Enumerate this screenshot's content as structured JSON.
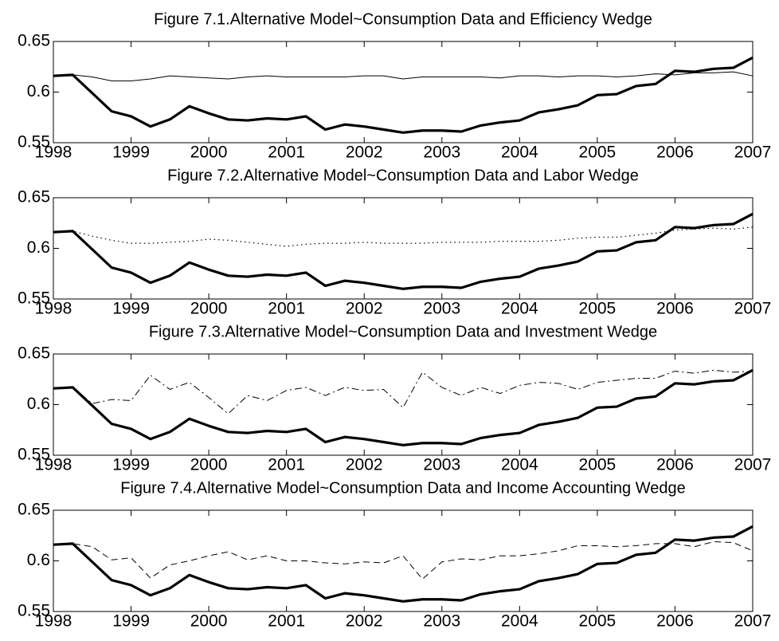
{
  "chart_data": [
    {
      "type": "line",
      "title": "Figure 7.1.Alternative Model~Consumption Data and Efficiency Wedge",
      "x": [
        1998,
        1998.25,
        1998.5,
        1998.75,
        1999,
        1999.25,
        1999.5,
        1999.75,
        2000,
        2000.25,
        2000.5,
        2000.75,
        2001,
        2001.25,
        2001.5,
        2001.75,
        2002,
        2002.25,
        2002.5,
        2002.75,
        2003,
        2003.25,
        2003.5,
        2003.75,
        2004,
        2004.25,
        2004.5,
        2004.75,
        2005,
        2005.25,
        2005.5,
        2005.75,
        2006,
        2006.25,
        2006.5,
        2006.75,
        2007
      ],
      "series": [
        {
          "color": "#000000",
          "style": "thick",
          "values": [
            0.616,
            0.617,
            0.599,
            0.581,
            0.576,
            0.566,
            0.573,
            0.586,
            0.579,
            0.573,
            0.572,
            0.574,
            0.573,
            0.576,
            0.563,
            0.568,
            0.566,
            0.563,
            0.56,
            0.562,
            0.562,
            0.561,
            0.567,
            0.57,
            0.572,
            0.58,
            0.583,
            0.587,
            0.597,
            0.598,
            0.606,
            0.608,
            0.621,
            0.62,
            0.623,
            0.624,
            0.634
          ]
        },
        {
          "color": "#000000",
          "style": "solid",
          "values": [
            0.616,
            0.617,
            0.615,
            0.611,
            0.611,
            0.613,
            0.616,
            0.615,
            0.614,
            0.613,
            0.615,
            0.616,
            0.615,
            0.615,
            0.615,
            0.615,
            0.616,
            0.616,
            0.613,
            0.615,
            0.615,
            0.615,
            0.615,
            0.614,
            0.616,
            0.616,
            0.615,
            0.616,
            0.616,
            0.615,
            0.616,
            0.618,
            0.617,
            0.619,
            0.619,
            0.62,
            0.616
          ]
        }
      ],
      "xlim": [
        1998,
        2007
      ],
      "xticks": [
        1998,
        1999,
        2000,
        2001,
        2002,
        2003,
        2004,
        2005,
        2006,
        2007
      ],
      "ylim": [
        0.55,
        0.65
      ],
      "yticks": [
        0.55,
        0.6,
        0.65
      ]
    },
    {
      "type": "line",
      "title": "Figure 7.2.Alternative Model~Consumption Data and Labor Wedge",
      "x": [
        1998,
        1998.25,
        1998.5,
        1998.75,
        1999,
        1999.25,
        1999.5,
        1999.75,
        2000,
        2000.25,
        2000.5,
        2000.75,
        2001,
        2001.25,
        2001.5,
        2001.75,
        2002,
        2002.25,
        2002.5,
        2002.75,
        2003,
        2003.25,
        2003.5,
        2003.75,
        2004,
        2004.25,
        2004.5,
        2004.75,
        2005,
        2005.25,
        2005.5,
        2005.75,
        2006,
        2006.25,
        2006.5,
        2006.75,
        2007
      ],
      "series": [
        {
          "color": "#000000",
          "style": "thick",
          "values": [
            0.616,
            0.617,
            0.599,
            0.581,
            0.576,
            0.566,
            0.573,
            0.586,
            0.579,
            0.573,
            0.572,
            0.574,
            0.573,
            0.576,
            0.563,
            0.568,
            0.566,
            0.563,
            0.56,
            0.562,
            0.562,
            0.561,
            0.567,
            0.57,
            0.572,
            0.58,
            0.583,
            0.587,
            0.597,
            0.598,
            0.606,
            0.608,
            0.621,
            0.62,
            0.623,
            0.624,
            0.634
          ]
        },
        {
          "color": "#000000",
          "style": "dotted",
          "values": [
            0.616,
            0.617,
            0.612,
            0.608,
            0.605,
            0.605,
            0.606,
            0.607,
            0.609,
            0.608,
            0.606,
            0.604,
            0.602,
            0.604,
            0.605,
            0.605,
            0.606,
            0.605,
            0.605,
            0.605,
            0.606,
            0.606,
            0.606,
            0.607,
            0.607,
            0.607,
            0.608,
            0.61,
            0.611,
            0.611,
            0.613,
            0.615,
            0.618,
            0.619,
            0.62,
            0.619,
            0.621
          ]
        }
      ],
      "xlim": [
        1998,
        2007
      ],
      "xticks": [
        1998,
        1999,
        2000,
        2001,
        2002,
        2003,
        2004,
        2005,
        2006,
        2007
      ],
      "ylim": [
        0.55,
        0.65
      ],
      "yticks": [
        0.55,
        0.6,
        0.65
      ]
    },
    {
      "type": "line",
      "title": "Figure 7.3.Alternative Model~Consumption Data and Investment Wedge",
      "x": [
        1998,
        1998.25,
        1998.5,
        1998.75,
        1999,
        1999.25,
        1999.5,
        1999.75,
        2000,
        2000.25,
        2000.5,
        2000.75,
        2001,
        2001.25,
        2001.5,
        2001.75,
        2002,
        2002.25,
        2002.5,
        2002.75,
        2003,
        2003.25,
        2003.5,
        2003.75,
        2004,
        2004.25,
        2004.5,
        2004.75,
        2005,
        2005.25,
        2005.5,
        2005.75,
        2006,
        2006.25,
        2006.5,
        2006.75,
        2007
      ],
      "series": [
        {
          "color": "#000000",
          "style": "thick",
          "values": [
            0.616,
            0.617,
            0.599,
            0.581,
            0.576,
            0.566,
            0.573,
            0.586,
            0.579,
            0.573,
            0.572,
            0.574,
            0.573,
            0.576,
            0.563,
            0.568,
            0.566,
            0.563,
            0.56,
            0.562,
            0.562,
            0.561,
            0.567,
            0.57,
            0.572,
            0.58,
            0.583,
            0.587,
            0.597,
            0.598,
            0.606,
            0.608,
            0.621,
            0.62,
            0.623,
            0.624,
            0.634
          ]
        },
        {
          "color": "#000000",
          "style": "dashdot",
          "values": [
            0.616,
            0.617,
            0.601,
            0.605,
            0.604,
            0.629,
            0.615,
            0.622,
            0.607,
            0.591,
            0.609,
            0.604,
            0.614,
            0.617,
            0.609,
            0.617,
            0.614,
            0.615,
            0.597,
            0.632,
            0.617,
            0.609,
            0.617,
            0.611,
            0.619,
            0.622,
            0.621,
            0.615,
            0.622,
            0.624,
            0.626,
            0.626,
            0.633,
            0.631,
            0.634,
            0.632,
            0.633
          ]
        }
      ],
      "xlim": [
        1998,
        2007
      ],
      "xticks": [
        1998,
        1999,
        2000,
        2001,
        2002,
        2003,
        2004,
        2005,
        2006,
        2007
      ],
      "ylim": [
        0.55,
        0.65
      ],
      "yticks": [
        0.55,
        0.6,
        0.65
      ]
    },
    {
      "type": "line",
      "title": "Figure 7.4.Alternative Model~Consumption Data and Income Accounting Wedge",
      "x": [
        1998,
        1998.25,
        1998.5,
        1998.75,
        1999,
        1999.25,
        1999.5,
        1999.75,
        2000,
        2000.25,
        2000.5,
        2000.75,
        2001,
        2001.25,
        2001.5,
        2001.75,
        2002,
        2002.25,
        2002.5,
        2002.75,
        2003,
        2003.25,
        2003.5,
        2003.75,
        2004,
        2004.25,
        2004.5,
        2004.75,
        2005,
        2005.25,
        2005.5,
        2005.75,
        2006,
        2006.25,
        2006.5,
        2006.75,
        2007
      ],
      "series": [
        {
          "color": "#000000",
          "style": "thick",
          "values": [
            0.616,
            0.617,
            0.599,
            0.581,
            0.576,
            0.566,
            0.573,
            0.586,
            0.579,
            0.573,
            0.572,
            0.574,
            0.573,
            0.576,
            0.563,
            0.568,
            0.566,
            0.563,
            0.56,
            0.562,
            0.562,
            0.561,
            0.567,
            0.57,
            0.572,
            0.58,
            0.583,
            0.587,
            0.597,
            0.598,
            0.606,
            0.608,
            0.621,
            0.62,
            0.623,
            0.624,
            0.634
          ]
        },
        {
          "color": "#000000",
          "style": "dashed",
          "values": [
            0.616,
            0.617,
            0.614,
            0.601,
            0.603,
            0.583,
            0.596,
            0.6,
            0.605,
            0.609,
            0.601,
            0.605,
            0.6,
            0.6,
            0.598,
            0.597,
            0.599,
            0.598,
            0.605,
            0.582,
            0.599,
            0.602,
            0.601,
            0.605,
            0.605,
            0.607,
            0.61,
            0.615,
            0.615,
            0.614,
            0.615,
            0.617,
            0.617,
            0.614,
            0.619,
            0.618,
            0.61
          ]
        }
      ],
      "xlim": [
        1998,
        2007
      ],
      "xticks": [
        1998,
        1999,
        2000,
        2001,
        2002,
        2003,
        2004,
        2005,
        2006,
        2007
      ],
      "ylim": [
        0.55,
        0.65
      ],
      "yticks": [
        0.55,
        0.6,
        0.65
      ]
    }
  ]
}
